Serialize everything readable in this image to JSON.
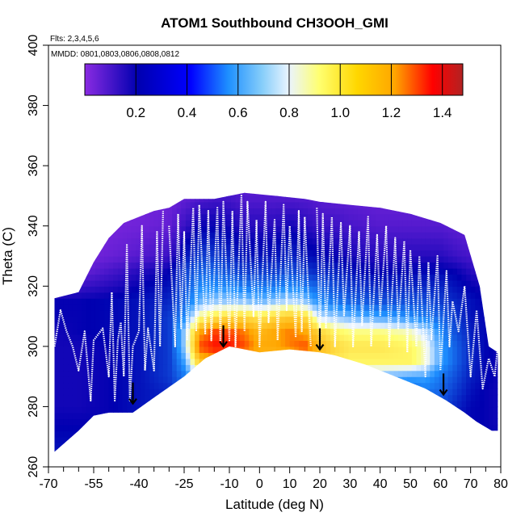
{
  "chart_data": {
    "type": "heatmap",
    "title": "ATOM1 Southbound CH3OOH_GMI",
    "flights_label": "Flts: 2,3,4,5,6",
    "dates_label": "MMDD: 0801,0803,0806,0808,0812",
    "xlabel": "Latitude (deg N)",
    "ylabel": "Theta (C)",
    "xlim": [
      -70,
      80
    ],
    "ylim": [
      260,
      400
    ],
    "x_ticks": [
      -70,
      -55,
      -40,
      -25,
      -10,
      0,
      10,
      20,
      30,
      40,
      50,
      60,
      70,
      80
    ],
    "x_tick_labels": [
      "-70",
      "-55",
      "-40",
      "-25",
      "-10",
      "0",
      "10",
      "20",
      "30",
      "40",
      "50",
      "60",
      "70",
      "80"
    ],
    "x_minor_ticks": [
      -65,
      -60,
      -50,
      -45,
      -35,
      -30,
      -20,
      -15,
      -5,
      5,
      15,
      25,
      35,
      45,
      55,
      65,
      75
    ],
    "y_ticks": [
      260,
      280,
      300,
      320,
      340,
      360,
      380,
      400
    ],
    "y_tick_labels": [
      "260",
      "280",
      "300",
      "320",
      "340",
      "360",
      "380",
      "400"
    ],
    "colorbar": {
      "min": 0.0,
      "max": 1.48,
      "ticks": [
        0.2,
        0.4,
        0.6,
        0.8,
        1.0,
        1.2,
        1.4
      ],
      "tick_labels": [
        "0.2",
        "0.4",
        "0.6",
        "0.8",
        "1.0",
        "1.2",
        "1.4"
      ],
      "colors": [
        "#8a2be2",
        "#0000b0",
        "#1e90ff",
        "#eaf4ff",
        "#ffff70",
        "#ffa500",
        "#ff0000",
        "#b22222"
      ]
    },
    "upper_boundary": [
      [
        -68,
        316
      ],
      [
        -60,
        318
      ],
      [
        -55,
        328
      ],
      [
        -50,
        336
      ],
      [
        -45,
        341
      ],
      [
        -40,
        343
      ],
      [
        -35,
        345
      ],
      [
        -30,
        346
      ],
      [
        -25,
        349
      ],
      [
        -15,
        349
      ],
      [
        -5,
        351
      ],
      [
        5,
        350
      ],
      [
        15,
        349
      ],
      [
        20,
        348
      ],
      [
        30,
        347
      ],
      [
        40,
        346
      ],
      [
        50,
        344
      ],
      [
        60,
        341
      ],
      [
        68,
        337
      ],
      [
        73,
        320
      ],
      [
        76,
        300
      ],
      [
        79,
        298
      ]
    ],
    "lower_boundary": [
      [
        -68,
        265
      ],
      [
        -60,
        272
      ],
      [
        -55,
        277
      ],
      [
        -50,
        278
      ],
      [
        -42,
        278
      ],
      [
        -35,
        283
      ],
      [
        -25,
        290
      ],
      [
        -18,
        296
      ],
      [
        -10,
        300
      ],
      [
        0,
        298
      ],
      [
        10,
        299
      ],
      [
        20,
        298
      ],
      [
        25,
        297
      ],
      [
        35,
        294
      ],
      [
        45,
        290
      ],
      [
        55,
        286
      ],
      [
        62,
        282
      ],
      [
        68,
        278
      ],
      [
        72,
        275
      ],
      [
        77,
        272
      ],
      [
        79,
        272
      ]
    ],
    "field": {
      "lat": [
        -68,
        -60,
        -50,
        -40,
        -30,
        -25,
        -20,
        -15,
        -10,
        -5,
        0,
        5,
        10,
        15,
        20,
        25,
        30,
        40,
        50,
        55,
        60,
        65,
        70,
        75,
        80
      ],
      "theta": [
        265,
        275,
        280,
        285,
        290,
        295,
        300,
        305,
        310,
        315,
        320,
        325,
        330,
        340,
        350
      ],
      "values": [
        [
          0.25,
          0.25,
          0.25,
          0.3,
          0.35,
          0.35,
          0.35,
          0.35,
          0.35,
          0.35,
          0.35,
          0.35,
          0.35,
          0.35,
          0.35,
          0.35,
          0.35,
          0.35,
          0.35,
          0.35,
          0.3,
          0.25,
          0.25,
          0.22,
          0.2
        ],
        [
          0.2,
          0.2,
          0.2,
          0.25,
          0.3,
          0.35,
          0.4,
          0.4,
          0.4,
          0.4,
          0.4,
          0.4,
          0.4,
          0.4,
          0.4,
          0.4,
          0.4,
          0.4,
          0.35,
          0.35,
          0.3,
          0.25,
          0.22,
          0.2,
          0.18
        ],
        [
          0.18,
          0.18,
          0.2,
          0.25,
          0.3,
          0.4,
          0.5,
          0.5,
          0.5,
          0.5,
          0.5,
          0.5,
          0.5,
          0.5,
          0.5,
          0.5,
          0.45,
          0.45,
          0.4,
          0.45,
          0.4,
          0.3,
          0.22,
          0.2,
          0.18
        ],
        [
          0.18,
          0.18,
          0.2,
          0.25,
          0.3,
          0.45,
          0.6,
          0.6,
          0.6,
          0.6,
          0.6,
          0.6,
          0.6,
          0.6,
          0.6,
          0.6,
          0.55,
          0.5,
          0.45,
          0.5,
          0.45,
          0.35,
          0.25,
          0.2,
          0.18
        ],
        [
          0.18,
          0.18,
          0.2,
          0.25,
          0.35,
          0.5,
          0.75,
          0.8,
          0.8,
          0.8,
          0.8,
          0.8,
          0.8,
          0.8,
          0.8,
          0.75,
          0.7,
          0.65,
          0.6,
          0.6,
          0.5,
          0.4,
          0.28,
          0.22,
          0.18
        ],
        [
          0.18,
          0.18,
          0.2,
          0.25,
          0.35,
          0.6,
          1.1,
          1.2,
          1.2,
          1.15,
          1.1,
          1.1,
          1.1,
          1.15,
          1.05,
          1.0,
          0.95,
          0.95,
          0.95,
          0.85,
          0.6,
          0.45,
          0.3,
          0.22,
          0.18
        ],
        [
          0.18,
          0.18,
          0.2,
          0.25,
          0.35,
          0.7,
          1.3,
          1.35,
          1.35,
          1.3,
          1.2,
          1.2,
          1.25,
          1.3,
          1.15,
          1.05,
          1.0,
          1.0,
          0.95,
          0.85,
          0.6,
          0.45,
          0.3,
          0.22,
          0.18
        ],
        [
          0.18,
          0.2,
          0.22,
          0.25,
          0.35,
          0.7,
          1.2,
          1.3,
          1.3,
          1.25,
          1.15,
          1.2,
          1.25,
          1.2,
          1.05,
          0.95,
          0.9,
          0.9,
          0.85,
          0.75,
          0.55,
          0.4,
          0.28,
          0.22,
          0.2
        ],
        [
          0.2,
          0.2,
          0.22,
          0.25,
          0.35,
          0.55,
          0.9,
          1.0,
          1.05,
          1.05,
          1.0,
          1.05,
          1.1,
          1.05,
          0.75,
          0.7,
          0.65,
          0.6,
          0.55,
          0.5,
          0.45,
          0.35,
          0.25,
          0.22,
          0.2
        ],
        [
          0.2,
          0.2,
          0.22,
          0.25,
          0.3,
          0.45,
          0.65,
          0.7,
          0.7,
          0.7,
          0.65,
          0.7,
          0.75,
          0.7,
          0.55,
          0.5,
          0.45,
          0.4,
          0.4,
          0.4,
          0.35,
          0.3,
          0.25,
          0.2,
          0.2
        ],
        [
          0.1,
          0.12,
          0.15,
          0.2,
          0.25,
          0.4,
          0.55,
          0.55,
          0.55,
          0.5,
          0.5,
          0.5,
          0.55,
          0.5,
          0.45,
          0.4,
          0.35,
          0.3,
          0.3,
          0.3,
          0.3,
          0.25,
          0.2,
          0.18,
          0.15
        ],
        [
          0.05,
          0.05,
          0.1,
          0.15,
          0.2,
          0.35,
          0.45,
          0.45,
          0.4,
          0.35,
          0.35,
          0.35,
          0.4,
          0.35,
          0.3,
          0.3,
          0.25,
          0.2,
          0.22,
          0.22,
          0.22,
          0.2,
          0.15,
          0.12,
          0.1
        ],
        [
          0.03,
          0.03,
          0.05,
          0.08,
          0.12,
          0.25,
          0.35,
          0.35,
          0.3,
          0.25,
          0.25,
          0.25,
          0.3,
          0.25,
          0.22,
          0.2,
          0.18,
          0.15,
          0.15,
          0.15,
          0.15,
          0.12,
          0.1,
          0.08,
          0.06
        ],
        [
          0.02,
          0.02,
          0.03,
          0.04,
          0.06,
          0.12,
          0.2,
          0.2,
          0.18,
          0.15,
          0.15,
          0.15,
          0.18,
          0.15,
          0.12,
          0.12,
          0.1,
          0.08,
          0.08,
          0.08,
          0.08,
          0.07,
          0.06,
          0.05,
          0.04
        ],
        [
          0.02,
          0.02,
          0.02,
          0.03,
          0.04,
          0.06,
          0.08,
          0.1,
          0.1,
          0.08,
          0.08,
          0.08,
          0.08,
          0.08,
          0.07,
          0.06,
          0.06,
          0.05,
          0.05,
          0.05,
          0.05,
          0.04,
          0.04,
          0.03,
          0.03
        ]
      ]
    },
    "flight_track_segments": [
      [
        [
          -68,
          300
        ],
        [
          -66,
          312
        ],
        [
          -64,
          305
        ],
        [
          -62,
          300
        ],
        [
          -60,
          292
        ],
        [
          -58,
          305
        ],
        [
          -56,
          282
        ],
        [
          -55,
          302
        ],
        [
          -52,
          306
        ],
        [
          -50,
          290
        ],
        [
          -49,
          318
        ],
        [
          -48,
          282
        ],
        [
          -47,
          302
        ],
        [
          -46,
          308
        ],
        [
          -45,
          290
        ],
        [
          -44,
          334
        ],
        [
          -43,
          282
        ],
        [
          -42,
          300
        ],
        [
          -40,
          305
        ],
        [
          -39,
          340
        ],
        [
          -38,
          292
        ],
        [
          -37,
          306
        ],
        [
          -35,
          292
        ],
        [
          -34,
          338
        ],
        [
          -33,
          300
        ],
        [
          -32,
          345
        ]
      ],
      [
        [
          -30,
          340
        ],
        [
          -28,
          300
        ],
        [
          -27,
          344
        ],
        [
          -26,
          306
        ],
        [
          -25,
          338
        ],
        [
          -24,
          302
        ],
        [
          -22,
          346
        ],
        [
          -21,
          305
        ],
        [
          -20,
          347
        ],
        [
          -18,
          304
        ],
        [
          -17,
          345
        ],
        [
          -16,
          302
        ],
        [
          -14,
          346
        ],
        [
          -13,
          301
        ],
        [
          -12,
          348
        ],
        [
          -10,
          302
        ],
        [
          -9,
          345
        ],
        [
          -8,
          300
        ],
        [
          -6,
          350
        ],
        [
          -5,
          305
        ],
        [
          -4,
          348
        ],
        [
          -2,
          310
        ],
        [
          -1,
          342
        ],
        [
          0,
          300
        ],
        [
          2,
          348
        ],
        [
          3,
          308
        ],
        [
          5,
          342
        ],
        [
          6,
          302
        ],
        [
          8,
          347
        ],
        [
          9,
          312
        ],
        [
          10,
          340
        ],
        [
          12,
          303
        ],
        [
          13,
          345
        ],
        [
          14,
          305
        ],
        [
          15,
          343
        ],
        [
          17,
          300
        ]
      ],
      [
        [
          19,
          346
        ],
        [
          20,
          300
        ],
        [
          21,
          344
        ],
        [
          22,
          306
        ],
        [
          24,
          343
        ],
        [
          25,
          300
        ],
        [
          27,
          341
        ],
        [
          28,
          310
        ],
        [
          30,
          340
        ],
        [
          31,
          300
        ],
        [
          33,
          338
        ],
        [
          34,
          307
        ],
        [
          36,
          343
        ],
        [
          37,
          300
        ],
        [
          39,
          337
        ],
        [
          40,
          310
        ],
        [
          42,
          340
        ],
        [
          43,
          300
        ],
        [
          45,
          336
        ],
        [
          46,
          306
        ],
        [
          48,
          335
        ],
        [
          49,
          298
        ],
        [
          50,
          332
        ],
        [
          52,
          300
        ],
        [
          53,
          330
        ],
        [
          55,
          290
        ],
        [
          56,
          328
        ],
        [
          57,
          302
        ],
        [
          59,
          330
        ],
        [
          60,
          292
        ],
        [
          62,
          325
        ],
        [
          63,
          300
        ],
        [
          64,
          315
        ],
        [
          66,
          305
        ],
        [
          68,
          320
        ],
        [
          70,
          290
        ],
        [
          72,
          312
        ],
        [
          74,
          286
        ],
        [
          76,
          296
        ],
        [
          78,
          290
        ],
        [
          79,
          300
        ]
      ]
    ],
    "tropopause_arrows": [
      {
        "lat": -42,
        "theta": 285
      },
      {
        "lat": -12,
        "theta": 304
      },
      {
        "lat": 20,
        "theta": 303
      },
      {
        "lat": 61,
        "theta": 288
      }
    ]
  }
}
